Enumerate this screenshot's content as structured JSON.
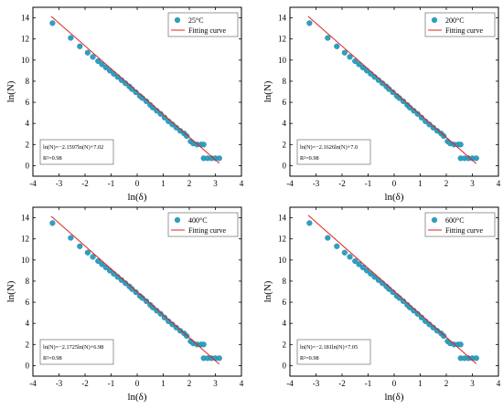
{
  "colors": {
    "point": "#2ea0c1",
    "point_stroke": "#1d7e9c",
    "fit_line": "#e02020"
  },
  "chart_data": [
    {
      "type": "scatter",
      "xlabel": "ln(δ)",
      "ylabel": "ln(N)",
      "xlim": [
        -4,
        4
      ],
      "ylim": [
        -1,
        15
      ],
      "xticks": [
        "-4",
        "-3",
        "-2",
        "-1",
        "0",
        "1",
        "2",
        "3",
        "4"
      ],
      "yticks": [
        "0",
        "2",
        "4",
        "6",
        "8",
        "10",
        "12",
        "14"
      ],
      "legend": {
        "position": "top-right",
        "series_label": "25°C",
        "fit_label": "Fitting curve"
      },
      "equation": "ln(N)=−2.1597ln(N)+7.02",
      "r2": "R²=0.98",
      "fit": {
        "slope": -2.1597,
        "intercept": 7.02
      },
      "series": [
        {
          "name": "25°C",
          "points": [
            [
              -3.25,
              13.5
            ],
            [
              -2.55,
              12.1
            ],
            [
              -2.2,
              11.3
            ],
            [
              -1.9,
              10.7
            ],
            [
              -1.7,
              10.3
            ],
            [
              -1.5,
              9.9
            ],
            [
              -1.35,
              9.6
            ],
            [
              -1.2,
              9.3
            ],
            [
              -1.05,
              9.0
            ],
            [
              -0.9,
              8.7
            ],
            [
              -0.75,
              8.4
            ],
            [
              -0.6,
              8.1
            ],
            [
              -0.45,
              7.8
            ],
            [
              -0.3,
              7.5
            ],
            [
              -0.2,
              7.25
            ],
            [
              -0.05,
              6.95
            ],
            [
              0.1,
              6.6
            ],
            [
              0.2,
              6.4
            ],
            [
              0.35,
              6.1
            ],
            [
              0.5,
              5.75
            ],
            [
              0.6,
              5.5
            ],
            [
              0.75,
              5.2
            ],
            [
              0.9,
              4.9
            ],
            [
              1.05,
              4.55
            ],
            [
              1.2,
              4.2
            ],
            [
              1.35,
              3.9
            ],
            [
              1.5,
              3.6
            ],
            [
              1.65,
              3.3
            ],
            [
              1.8,
              3.05
            ],
            [
              1.9,
              2.8
            ],
            [
              2.05,
              2.3
            ],
            [
              2.15,
              2.1
            ],
            [
              2.3,
              2.0
            ],
            [
              2.45,
              2.0
            ],
            [
              2.55,
              2.0
            ],
            [
              2.55,
              0.7
            ],
            [
              2.7,
              0.7
            ],
            [
              2.85,
              0.7
            ],
            [
              3.0,
              0.7
            ],
            [
              3.15,
              0.7
            ]
          ]
        }
      ]
    },
    {
      "type": "scatter",
      "xlabel": "ln(δ)",
      "ylabel": "ln(N)",
      "xlim": [
        -4,
        4
      ],
      "ylim": [
        -1,
        15
      ],
      "xticks": [
        "-4",
        "-3",
        "-2",
        "-1",
        "0",
        "1",
        "2",
        "3",
        "4"
      ],
      "yticks": [
        "0",
        "2",
        "4",
        "6",
        "8",
        "10",
        "12",
        "14"
      ],
      "legend": {
        "position": "top-right",
        "series_label": "200°C",
        "fit_label": "Fitting curve"
      },
      "equation": "ln(N)=−2.1626ln(N)+7.0",
      "r2": "R²=0.98",
      "fit": {
        "slope": -2.1626,
        "intercept": 7.0
      },
      "series": [
        {
          "name": "200°C",
          "points": [
            [
              -3.25,
              13.5
            ],
            [
              -2.55,
              12.1
            ],
            [
              -2.2,
              11.3
            ],
            [
              -1.9,
              10.7
            ],
            [
              -1.7,
              10.3
            ],
            [
              -1.5,
              9.9
            ],
            [
              -1.35,
              9.6
            ],
            [
              -1.2,
              9.3
            ],
            [
              -1.05,
              9.0
            ],
            [
              -0.9,
              8.7
            ],
            [
              -0.75,
              8.4
            ],
            [
              -0.6,
              8.1
            ],
            [
              -0.45,
              7.8
            ],
            [
              -0.3,
              7.5
            ],
            [
              -0.2,
              7.25
            ],
            [
              -0.05,
              6.95
            ],
            [
              0.1,
              6.6
            ],
            [
              0.2,
              6.4
            ],
            [
              0.35,
              6.1
            ],
            [
              0.5,
              5.75
            ],
            [
              0.6,
              5.5
            ],
            [
              0.75,
              5.2
            ],
            [
              0.9,
              4.9
            ],
            [
              1.05,
              4.55
            ],
            [
              1.2,
              4.2
            ],
            [
              1.35,
              3.9
            ],
            [
              1.5,
              3.6
            ],
            [
              1.65,
              3.3
            ],
            [
              1.8,
              3.05
            ],
            [
              1.9,
              2.8
            ],
            [
              2.05,
              2.3
            ],
            [
              2.15,
              2.1
            ],
            [
              2.3,
              2.0
            ],
            [
              2.45,
              2.0
            ],
            [
              2.55,
              2.0
            ],
            [
              2.55,
              0.7
            ],
            [
              2.7,
              0.7
            ],
            [
              2.85,
              0.7
            ],
            [
              3.0,
              0.7
            ],
            [
              3.15,
              0.7
            ]
          ]
        }
      ]
    },
    {
      "type": "scatter",
      "xlabel": "ln(δ)",
      "ylabel": "ln(N)",
      "xlim": [
        -4,
        4
      ],
      "ylim": [
        -1,
        15
      ],
      "xticks": [
        "-4",
        "-3",
        "-2",
        "-1",
        "0",
        "1",
        "2",
        "3",
        "4"
      ],
      "yticks": [
        "0",
        "2",
        "4",
        "6",
        "8",
        "10",
        "12",
        "14"
      ],
      "legend": {
        "position": "top-right",
        "series_label": "400°C",
        "fit_label": "Fitting curve"
      },
      "equation": "ln(N)=−2.1725ln(N)+6.98",
      "r2": "R²=0.98",
      "fit": {
        "slope": -2.1725,
        "intercept": 6.98
      },
      "series": [
        {
          "name": "400°C",
          "points": [
            [
              -3.25,
              13.5
            ],
            [
              -2.55,
              12.1
            ],
            [
              -2.2,
              11.3
            ],
            [
              -1.9,
              10.7
            ],
            [
              -1.7,
              10.3
            ],
            [
              -1.5,
              9.9
            ],
            [
              -1.35,
              9.6
            ],
            [
              -1.2,
              9.3
            ],
            [
              -1.05,
              9.0
            ],
            [
              -0.9,
              8.7
            ],
            [
              -0.75,
              8.4
            ],
            [
              -0.6,
              8.1
            ],
            [
              -0.45,
              7.8
            ],
            [
              -0.3,
              7.5
            ],
            [
              -0.2,
              7.25
            ],
            [
              -0.05,
              6.95
            ],
            [
              0.1,
              6.6
            ],
            [
              0.2,
              6.4
            ],
            [
              0.35,
              6.1
            ],
            [
              0.5,
              5.75
            ],
            [
              0.6,
              5.5
            ],
            [
              0.75,
              5.2
            ],
            [
              0.9,
              4.9
            ],
            [
              1.05,
              4.55
            ],
            [
              1.2,
              4.2
            ],
            [
              1.35,
              3.9
            ],
            [
              1.5,
              3.6
            ],
            [
              1.65,
              3.3
            ],
            [
              1.8,
              3.05
            ],
            [
              1.9,
              2.8
            ],
            [
              2.05,
              2.3
            ],
            [
              2.15,
              2.1
            ],
            [
              2.3,
              2.0
            ],
            [
              2.45,
              2.0
            ],
            [
              2.55,
              2.0
            ],
            [
              2.55,
              0.7
            ],
            [
              2.7,
              0.7
            ],
            [
              2.85,
              0.7
            ],
            [
              3.0,
              0.7
            ],
            [
              3.15,
              0.7
            ]
          ]
        }
      ]
    },
    {
      "type": "scatter",
      "xlabel": "ln(δ)",
      "ylabel": "ln(N)",
      "xlim": [
        -4,
        4
      ],
      "ylim": [
        -1,
        15
      ],
      "xticks": [
        "-4",
        "-3",
        "-2",
        "-1",
        "0",
        "1",
        "2",
        "3",
        "4"
      ],
      "yticks": [
        "0",
        "2",
        "4",
        "6",
        "8",
        "10",
        "12",
        "14"
      ],
      "legend": {
        "position": "top-right",
        "series_label": "600°C",
        "fit_label": "Fitting curve"
      },
      "equation": "ln(N)=−2.181ln(N)+7.05",
      "r2": "R²=0.98",
      "fit": {
        "slope": -2.181,
        "intercept": 7.05
      },
      "series": [
        {
          "name": "600°C",
          "points": [
            [
              -3.25,
              13.5
            ],
            [
              -2.55,
              12.1
            ],
            [
              -2.2,
              11.3
            ],
            [
              -1.9,
              10.7
            ],
            [
              -1.7,
              10.3
            ],
            [
              -1.5,
              9.9
            ],
            [
              -1.35,
              9.6
            ],
            [
              -1.2,
              9.3
            ],
            [
              -1.05,
              9.0
            ],
            [
              -0.9,
              8.7
            ],
            [
              -0.75,
              8.4
            ],
            [
              -0.6,
              8.1
            ],
            [
              -0.45,
              7.8
            ],
            [
              -0.3,
              7.5
            ],
            [
              -0.2,
              7.25
            ],
            [
              -0.05,
              6.95
            ],
            [
              0.1,
              6.6
            ],
            [
              0.2,
              6.4
            ],
            [
              0.35,
              6.1
            ],
            [
              0.5,
              5.75
            ],
            [
              0.6,
              5.5
            ],
            [
              0.75,
              5.2
            ],
            [
              0.9,
              4.9
            ],
            [
              1.05,
              4.55
            ],
            [
              1.2,
              4.2
            ],
            [
              1.35,
              3.9
            ],
            [
              1.5,
              3.6
            ],
            [
              1.65,
              3.3
            ],
            [
              1.8,
              3.05
            ],
            [
              1.9,
              2.8
            ],
            [
              2.05,
              2.3
            ],
            [
              2.15,
              2.1
            ],
            [
              2.3,
              2.0
            ],
            [
              2.45,
              2.0
            ],
            [
              2.55,
              2.0
            ],
            [
              2.55,
              0.7
            ],
            [
              2.7,
              0.7
            ],
            [
              2.85,
              0.7
            ],
            [
              3.0,
              0.7
            ],
            [
              3.15,
              0.7
            ]
          ]
        }
      ]
    }
  ]
}
